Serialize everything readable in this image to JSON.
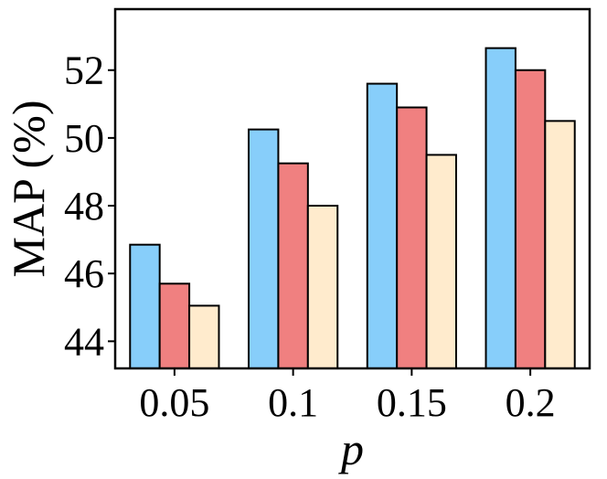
{
  "chart_data": {
    "type": "bar",
    "title": "",
    "xlabel": "p",
    "ylabel": "MAP (%)",
    "categories": [
      "0.05",
      "0.1",
      "0.15",
      "0.2"
    ],
    "series": [
      {
        "color": "#87CEFA",
        "values": [
          46.85,
          50.25,
          51.6,
          52.65
        ]
      },
      {
        "color": "#F08080",
        "values": [
          45.7,
          49.25,
          50.9,
          52.0
        ]
      },
      {
        "color": "#FFEBCD",
        "values": [
          45.05,
          48.0,
          49.5,
          50.5
        ]
      }
    ],
    "ylim": [
      43.2,
      53.8
    ],
    "yticks": [
      "44",
      "46",
      "48",
      "50",
      "52"
    ],
    "legend": "none",
    "grid": false
  }
}
